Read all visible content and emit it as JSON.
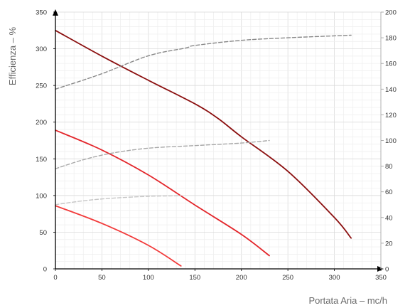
{
  "chart_data": {
    "type": "line",
    "xlabel": "Portata Aria – mc/h",
    "ylabel": "Efficienza – %",
    "xlim": [
      0,
      350
    ],
    "ylim": [
      0,
      350
    ],
    "y2lim": [
      0,
      200
    ],
    "x_ticks": [
      "0",
      "50",
      "100",
      "150",
      "200",
      "250",
      "300",
      "350"
    ],
    "y_ticks": [
      "0",
      "50",
      "100",
      "150",
      "200",
      "250",
      "300",
      "350"
    ],
    "y2_ticks": [
      "0",
      "20",
      "40",
      "60",
      "80",
      "100",
      "120",
      "140",
      "160",
      "180",
      "200"
    ],
    "grid": true,
    "series": [
      {
        "axis": "left",
        "color": "#8b0f0f",
        "dash": "solid",
        "x": [
          0,
          50,
          100,
          150,
          175,
          200,
          250,
          300,
          318
        ],
        "y": [
          325,
          290,
          257,
          225,
          205,
          180,
          133,
          70,
          42
        ]
      },
      {
        "axis": "left",
        "color": "#e3262b",
        "dash": "solid",
        "x": [
          0,
          50,
          100,
          150,
          200,
          230
        ],
        "y": [
          189,
          162,
          128,
          87,
          47,
          18
        ]
      },
      {
        "axis": "left",
        "color": "#f23a3a",
        "dash": "solid",
        "x": [
          0,
          50,
          100,
          135
        ],
        "y": [
          86,
          62,
          32,
          4
        ]
      },
      {
        "axis": "right",
        "color": "#888888",
        "dash": "dashed",
        "x": [
          0,
          50,
          100,
          140,
          150,
          200,
          250,
          318
        ],
        "y": [
          140,
          152,
          166,
          172,
          174,
          178,
          180,
          182
        ]
      },
      {
        "axis": "right",
        "color": "#a8a8a8",
        "dash": "dashed",
        "x": [
          0,
          30,
          60,
          100,
          150,
          200,
          230
        ],
        "y": [
          78,
          85,
          90,
          94,
          96,
          98,
          100
        ]
      },
      {
        "axis": "right",
        "color": "#c6c6c6",
        "dash": "dashed",
        "x": [
          0,
          30,
          60,
          100,
          135
        ],
        "y": [
          50,
          53,
          55,
          56.5,
          57
        ]
      }
    ]
  }
}
